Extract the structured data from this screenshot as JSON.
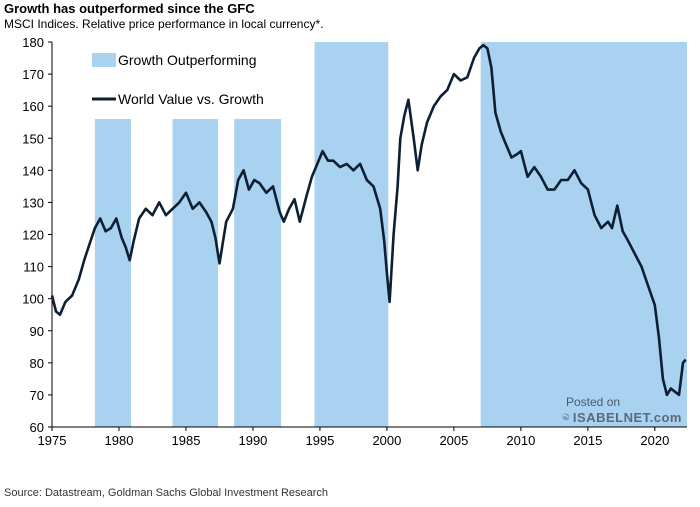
{
  "header": {
    "title": "Growth has outperformed since the GFC",
    "subtitle": "MSCI Indices. Relative price performance in local currency*."
  },
  "footer": {
    "source": "Source: Datastream, Goldman Sachs Global Investment Research"
  },
  "watermark": {
    "posted": "Posted on",
    "brand": "ISABELNET.com"
  },
  "colors": {
    "shade": "#a9d1f0",
    "line": "#0d1f33",
    "axis": "#000000"
  },
  "chart_data": {
    "type": "line",
    "title": "Growth has outperformed since the GFC",
    "subtitle": "MSCI Indices. Relative price performance in local currency*.",
    "xlabel": "",
    "ylabel": "",
    "xlim": [
      1975,
      2022.4
    ],
    "ylim": [
      60,
      180
    ],
    "x_ticks": [
      1975,
      1980,
      1985,
      1990,
      1995,
      2000,
      2005,
      2010,
      2015,
      2020
    ],
    "y_ticks": [
      60,
      70,
      80,
      90,
      100,
      110,
      120,
      130,
      140,
      150,
      160,
      170,
      180
    ],
    "legend": [
      "Growth Outperforming",
      "World Value vs. Growth"
    ],
    "legend_position": "top-left",
    "shaded_periods": [
      {
        "start": 1978.2,
        "end": 1980.9,
        "top": 156
      },
      {
        "start": 1984.0,
        "end": 1987.4,
        "top": 156
      },
      {
        "start": 1988.6,
        "end": 1992.1,
        "top": 156
      },
      {
        "start": 1994.6,
        "end": 2000.1,
        "top": 180
      },
      {
        "start": 2007.0,
        "end": 2022.4,
        "top": 180
      }
    ],
    "series": [
      {
        "name": "World Value vs. Growth",
        "x": [
          1975.0,
          1975.3,
          1975.6,
          1976.0,
          1976.5,
          1977.0,
          1977.4,
          1977.8,
          1978.2,
          1978.6,
          1979.0,
          1979.4,
          1979.8,
          1980.2,
          1980.5,
          1980.8,
          1981.1,
          1981.5,
          1982.0,
          1982.5,
          1983.0,
          1983.5,
          1984.0,
          1984.5,
          1985.0,
          1985.5,
          1986.0,
          1986.5,
          1986.9,
          1987.2,
          1987.5,
          1988.0,
          1988.5,
          1988.9,
          1989.3,
          1989.7,
          1990.1,
          1990.5,
          1991.0,
          1991.5,
          1992.0,
          1992.3,
          1992.7,
          1993.1,
          1993.5,
          1994.0,
          1994.4,
          1994.8,
          1995.2,
          1995.6,
          1996.0,
          1996.5,
          1997.0,
          1997.5,
          1998.0,
          1998.5,
          1999.0,
          1999.5,
          1999.8,
          2000.0,
          2000.2,
          2000.5,
          2000.8,
          2001.0,
          2001.3,
          2001.6,
          2002.0,
          2002.3,
          2002.6,
          2003.0,
          2003.5,
          2004.0,
          2004.5,
          2005.0,
          2005.5,
          2006.0,
          2006.5,
          2006.9,
          2007.2,
          2007.5,
          2007.8,
          2008.1,
          2008.5,
          2008.9,
          2009.3,
          2009.7,
          2010.0,
          2010.5,
          2011.0,
          2011.5,
          2012.0,
          2012.5,
          2013.0,
          2013.5,
          2014.0,
          2014.5,
          2015.0,
          2015.5,
          2016.0,
          2016.5,
          2016.8,
          2017.2,
          2017.6,
          2018.0,
          2018.5,
          2019.0,
          2019.5,
          2020.0,
          2020.3,
          2020.6,
          2020.9,
          2021.2,
          2021.5,
          2021.8,
          2022.1,
          2022.3
        ],
        "values": [
          101,
          96,
          95,
          99,
          101,
          106,
          112,
          117,
          122,
          125,
          121,
          122,
          125,
          119,
          116,
          112,
          118,
          125,
          128,
          126,
          130,
          126,
          128,
          130,
          133,
          128,
          130,
          127,
          124,
          119,
          111,
          124,
          128,
          137,
          140,
          134,
          137,
          136,
          133,
          135,
          127,
          124,
          128,
          131,
          124,
          132,
          138,
          142,
          146,
          143,
          143,
          141,
          142,
          140,
          142,
          137,
          135,
          128,
          118,
          108,
          99,
          120,
          135,
          150,
          157,
          162,
          150,
          140,
          148,
          155,
          160,
          163,
          165,
          170,
          168,
          169,
          175,
          178,
          179,
          178,
          172,
          158,
          152,
          148,
          144,
          145,
          146,
          138,
          141,
          138,
          134,
          134,
          137,
          137,
          140,
          136,
          134,
          126,
          122,
          124,
          122,
          129,
          121,
          118,
          114,
          110,
          104,
          98,
          88,
          75,
          70,
          72,
          71,
          70,
          80,
          81
        ]
      }
    ]
  }
}
